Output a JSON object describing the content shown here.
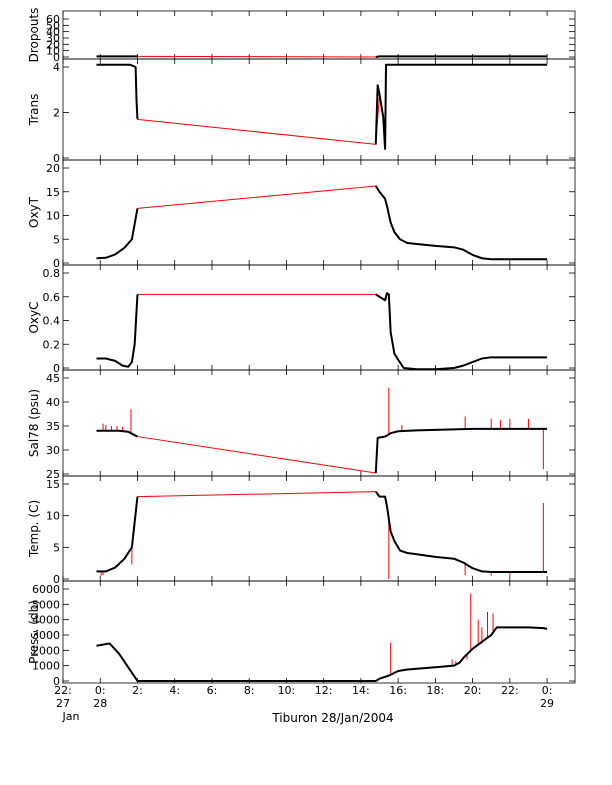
{
  "caption": "Tiburon 28/Jan/2004",
  "colors": {
    "trace": "#000000",
    "connector": "#ff0000",
    "spike": "#ff0000",
    "axis": "#000000"
  },
  "x_axis": {
    "ticks": [
      {
        "value": -2,
        "label": "22:",
        "label2": "27",
        "label3": "Jan"
      },
      {
        "value": 0,
        "label": "0:",
        "label2": "28"
      },
      {
        "value": 2,
        "label": "2:"
      },
      {
        "value": 4,
        "label": "4:"
      },
      {
        "value": 6,
        "label": "6:"
      },
      {
        "value": 8,
        "label": "8:"
      },
      {
        "value": 10,
        "label": "10:"
      },
      {
        "value": 12,
        "label": "12:"
      },
      {
        "value": 14,
        "label": "14:"
      },
      {
        "value": 16,
        "label": "16:"
      },
      {
        "value": 18,
        "label": "18:"
      },
      {
        "value": 20,
        "label": "20:"
      },
      {
        "value": 22,
        "label": "22:"
      },
      {
        "value": 24,
        "label": "0:",
        "label2": "29"
      }
    ]
  },
  "chart_data": [
    {
      "type": "line",
      "ylabel": "Dropouts",
      "xlim": [
        -2,
        25.5
      ],
      "ylim": [
        0,
        60
      ],
      "yticks": [
        0,
        10,
        20,
        30,
        40,
        50,
        60
      ],
      "series": [
        {
          "x": [
            -0.2,
            2.0,
            14.8,
            15.0,
            15.3,
            24.0
          ],
          "y": [
            1,
            1,
            0,
            1,
            1,
            1
          ]
        }
      ],
      "connector": [
        [
          2.0,
          1
        ],
        [
          14.8,
          0
        ]
      ]
    },
    {
      "type": "line",
      "ylabel": "Trans",
      "xlim": [
        -2,
        25.5
      ],
      "ylim": [
        0,
        4
      ],
      "yticks": [
        0,
        2,
        4
      ],
      "series": [
        {
          "x": [
            -0.2,
            1.6,
            1.9,
            1.95,
            2.0,
            14.8,
            14.9,
            15.0,
            15.2,
            15.3,
            15.35,
            15.5,
            24.0
          ],
          "y": [
            4.1,
            4.1,
            4.0,
            2.5,
            1.7,
            0.6,
            3.2,
            2.8,
            1.8,
            0.4,
            4.1,
            4.1,
            4.1
          ]
        }
      ],
      "connector": [
        [
          2.0,
          1.7
        ],
        [
          14.8,
          0.6
        ],
        [
          15.0,
          2.8
        ],
        [
          15.2,
          1.8
        ],
        [
          15.3,
          0.6
        ]
      ]
    },
    {
      "type": "line",
      "ylabel": "OxyT",
      "xlim": [
        -2,
        25.5
      ],
      "ylim": [
        0,
        20
      ],
      "yticks": [
        0,
        5,
        10,
        15,
        20
      ],
      "series": [
        {
          "x": [
            -0.2,
            0.3,
            0.8,
            1.3,
            1.7,
            2.0,
            14.8,
            15.0,
            15.3,
            15.4,
            15.6,
            15.8,
            16.1,
            16.5,
            17.0,
            18.0,
            19.0,
            19.5,
            20.0,
            20.5,
            21.0,
            22.0,
            24.0
          ],
          "y": [
            1.0,
            1.1,
            1.8,
            3.2,
            5.0,
            11.5,
            16.2,
            15.0,
            13.5,
            12.0,
            8.5,
            6.5,
            5.0,
            4.2,
            4.0,
            3.6,
            3.3,
            2.8,
            1.7,
            1.0,
            0.8,
            0.8,
            0.8
          ]
        }
      ],
      "connector": [
        [
          2.0,
          11.5
        ],
        [
          14.8,
          16.2
        ],
        [
          15.0,
          15.0
        ],
        [
          15.3,
          13.5
        ]
      ]
    },
    {
      "type": "line",
      "ylabel": "OxyC",
      "xlim": [
        -2,
        25.5
      ],
      "ylim": [
        0,
        0.8
      ],
      "yticks": [
        0.0,
        0.2,
        0.4,
        0.6,
        0.8
      ],
      "series": [
        {
          "x": [
            -0.2,
            0.3,
            0.8,
            1.2,
            1.5,
            1.7,
            1.85,
            2.0,
            14.8,
            15.3,
            15.4,
            15.5,
            15.6,
            15.8,
            16.0,
            16.3,
            17.0,
            18.0,
            19.0,
            19.5,
            20.0,
            20.5,
            21.0,
            22.0,
            24.0
          ],
          "y": [
            0.08,
            0.08,
            0.06,
            0.02,
            0.01,
            0.05,
            0.2,
            0.62,
            0.62,
            0.57,
            0.63,
            0.62,
            0.3,
            0.12,
            0.07,
            0.0,
            -0.01,
            -0.01,
            0.0,
            0.02,
            0.05,
            0.08,
            0.09,
            0.09,
            0.09
          ]
        }
      ],
      "connector": [
        [
          2.0,
          0.62
        ],
        [
          14.8,
          0.62
        ],
        [
          15.3,
          0.57
        ],
        [
          15.4,
          0.63
        ]
      ]
    },
    {
      "type": "line",
      "ylabel": "Sal78 (psu)",
      "xlim": [
        -2,
        25.5
      ],
      "ylim": [
        25,
        45
      ],
      "yticks": [
        25,
        30,
        35,
        40,
        45
      ],
      "series": [
        {
          "x": [
            -0.2,
            1.0,
            1.5,
            2.0,
            14.8,
            14.9,
            15.0,
            15.3,
            15.6,
            16.0,
            17.0,
            18.0,
            20.0,
            22.0,
            24.0
          ],
          "y": [
            34.0,
            34.0,
            33.8,
            32.8,
            25.2,
            32.5,
            32.6,
            32.8,
            33.5,
            33.9,
            34.1,
            34.2,
            34.4,
            34.4,
            34.4
          ]
        }
      ],
      "connector": [
        [
          2.0,
          32.8
        ],
        [
          14.8,
          25.2
        ]
      ],
      "spikes": [
        [
          0.15,
          35.5
        ],
        [
          0.3,
          35.2
        ],
        [
          0.6,
          35.0
        ],
        [
          0.9,
          35.0
        ],
        [
          1.2,
          34.8
        ],
        [
          1.65,
          38.5
        ],
        [
          15.5,
          43.0
        ],
        [
          16.2,
          35.2
        ],
        [
          19.6,
          37.0
        ],
        [
          21.0,
          36.5
        ],
        [
          21.5,
          36.2
        ],
        [
          22.0,
          36.5
        ],
        [
          23.0,
          36.5
        ],
        [
          23.8,
          26.0
        ]
      ]
    },
    {
      "type": "line",
      "ylabel": "Temp. (C)",
      "xlim": [
        -2,
        25.5
      ],
      "ylim": [
        0,
        15
      ],
      "yticks": [
        0,
        5,
        10,
        15
      ],
      "series": [
        {
          "x": [
            -0.2,
            0.3,
            0.8,
            1.3,
            1.7,
            2.0,
            14.8,
            15.0,
            15.3,
            15.4,
            15.6,
            15.8,
            16.1,
            16.5,
            17.0,
            18.0,
            19.0,
            19.5,
            20.0,
            20.5,
            21.0,
            22.0,
            24.0
          ],
          "y": [
            1.2,
            1.2,
            1.8,
            3.2,
            5.0,
            13.0,
            13.8,
            13.0,
            13.0,
            11.5,
            7.5,
            6.0,
            4.5,
            4.1,
            3.9,
            3.5,
            3.2,
            2.6,
            1.7,
            1.2,
            1.1,
            1.1,
            1.1
          ]
        }
      ],
      "connector": [
        [
          2.0,
          13.0
        ],
        [
          14.8,
          13.8
        ]
      ],
      "spikes": [
        [
          0.05,
          0.5
        ],
        [
          0.15,
          0.6
        ],
        [
          1.7,
          2.3
        ],
        [
          15.5,
          0.0
        ],
        [
          19.6,
          0.6
        ],
        [
          21.0,
          0.5
        ],
        [
          22.0,
          0.5
        ],
        [
          23.8,
          12.0
        ]
      ]
    },
    {
      "type": "line",
      "ylabel": "Press. (db)",
      "xlim": [
        -2,
        25.5
      ],
      "ylim": [
        0,
        6000
      ],
      "yticks": [
        0,
        1000,
        2000,
        3000,
        4000,
        5000,
        6000
      ],
      "series": [
        {
          "x": [
            -0.2,
            0.5,
            1.0,
            1.5,
            2.0,
            2.5,
            14.8,
            15.0,
            15.5,
            16.0,
            16.5,
            17.0,
            18.0,
            19.0,
            19.3,
            19.5,
            20.0,
            21.0,
            21.3,
            22.0,
            23.0,
            23.8,
            24.0
          ],
          "y": [
            2300,
            2450,
            1800,
            900,
            0,
            0,
            0,
            150,
            350,
            650,
            750,
            800,
            900,
            1000,
            1200,
            1500,
            2100,
            3000,
            3500,
            3500,
            3500,
            3450,
            3400
          ]
        }
      ],
      "spikes": [
        [
          0.1,
          2400
        ],
        [
          0.4,
          2400
        ],
        [
          0.7,
          2200
        ],
        [
          0.9,
          1800
        ],
        [
          1.1,
          1700
        ],
        [
          1.3,
          1400
        ],
        [
          15.6,
          2500
        ],
        [
          18.9,
          1400
        ],
        [
          19.1,
          1300
        ],
        [
          19.7,
          1400
        ],
        [
          19.9,
          5700
        ],
        [
          20.3,
          4000
        ],
        [
          20.5,
          3500
        ],
        [
          20.8,
          4500
        ],
        [
          21.1,
          4400
        ],
        [
          21.5,
          3500
        ],
        [
          21.8,
          3500
        ],
        [
          22.1,
          3500
        ],
        [
          22.4,
          3500
        ],
        [
          22.7,
          3500
        ],
        [
          22.9,
          3500
        ],
        [
          23.2,
          3500
        ],
        [
          23.5,
          3500
        ]
      ]
    }
  ]
}
